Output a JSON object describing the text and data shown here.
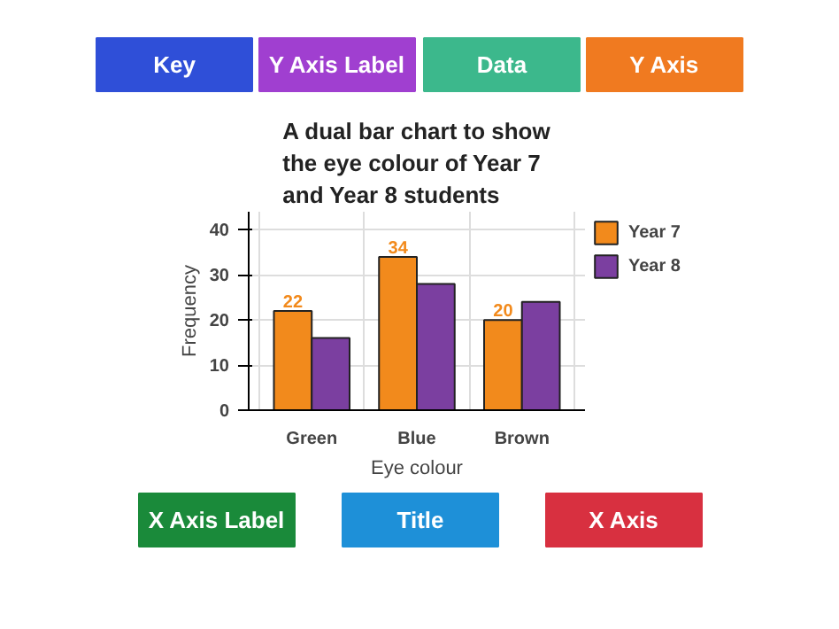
{
  "chart_data": {
    "type": "bar",
    "title": "A dual bar chart to show the eye colour of Year 7 and Year 8 students",
    "xlabel": "Eye colour",
    "ylabel": "Frequency",
    "categories": [
      "Green",
      "Blue",
      "Brown"
    ],
    "series": [
      {
        "name": "Year 7",
        "color": "#f28a1c",
        "values": [
          22,
          34,
          20
        ],
        "value_labels": [
          "22",
          "34",
          "20"
        ]
      },
      {
        "name": "Year 8",
        "color": "#7b3fa0",
        "values": [
          16,
          28,
          24
        ]
      }
    ],
    "ylim": [
      0,
      44
    ],
    "yticks": [
      0,
      10,
      20,
      30,
      40
    ],
    "grid": true,
    "legend": "right",
    "annotations": [
      "Key",
      "Y Axis Label",
      "Data",
      "Y Axis",
      "X Axis Label",
      "Title",
      "X Axis"
    ]
  }
}
